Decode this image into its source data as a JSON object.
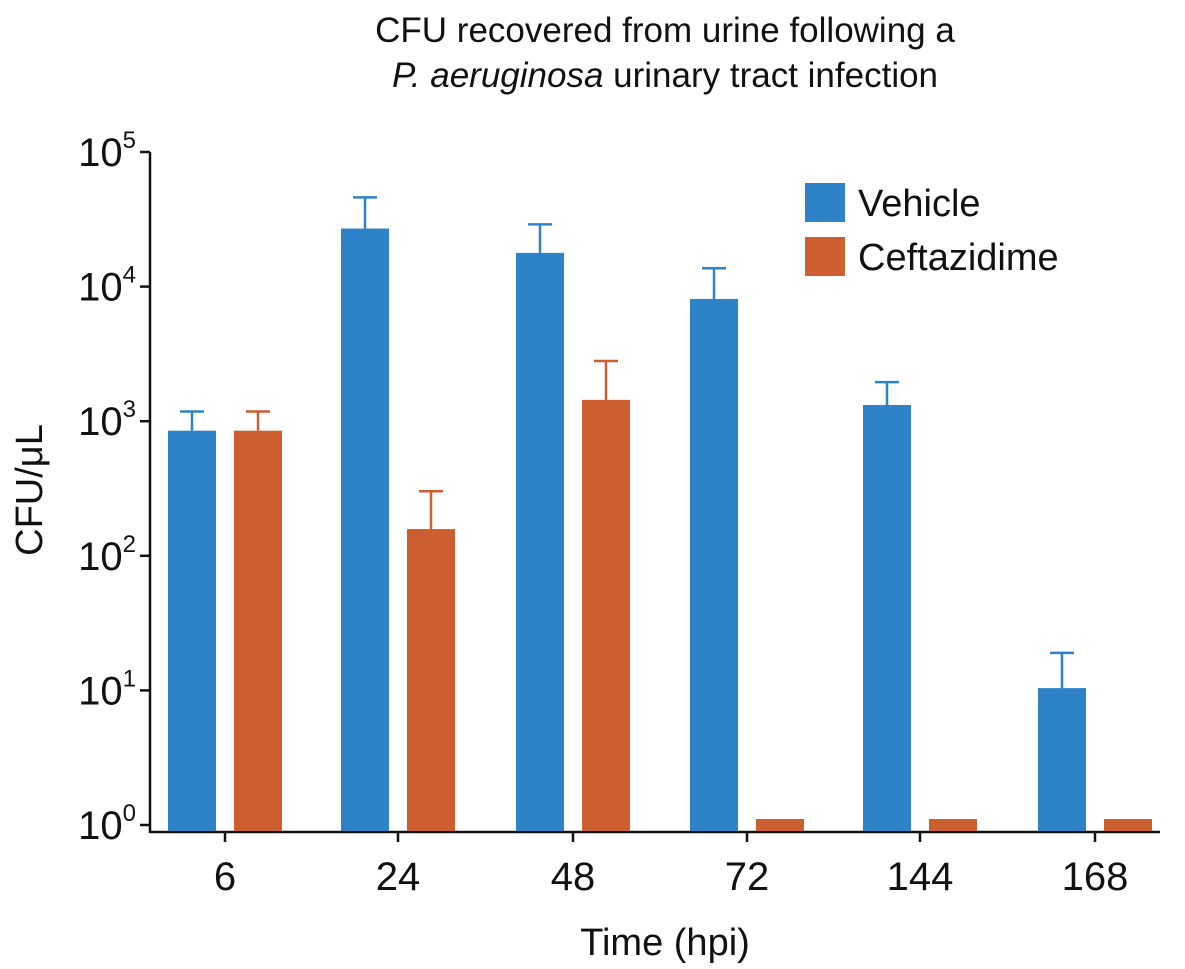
{
  "chart_data": {
    "type": "bar",
    "title_line1": "CFU recovered from urine following a",
    "title_line2_italic": "P. aeruginosa",
    "title_line2_rest": " urinary tract infection",
    "xlabel": "Time (hpi)",
    "ylabel": "CFU/μL",
    "yscale": "log",
    "ylim": [
      1,
      100000
    ],
    "yticks": [
      {
        "base": "10",
        "exp": "0"
      },
      {
        "base": "10",
        "exp": "1"
      },
      {
        "base": "10",
        "exp": "2"
      },
      {
        "base": "10",
        "exp": "3"
      },
      {
        "base": "10",
        "exp": "4"
      },
      {
        "base": "10",
        "exp": "5"
      }
    ],
    "categories": [
      "6",
      "24",
      "48",
      "72",
      "144",
      "168"
    ],
    "series": [
      {
        "name": "Vehicle",
        "color": "#2e82c8",
        "values": [
          850,
          27000,
          17800,
          8100,
          1320,
          10.4
        ],
        "error_upper": [
          1180,
          46000,
          29000,
          13700,
          1950,
          19
        ]
      },
      {
        "name": "Ceftazidime",
        "color": "#cc5e30",
        "values": [
          850,
          158,
          1440,
          1,
          1,
          1
        ],
        "error_upper": [
          1180,
          302,
          2800,
          null,
          null,
          null
        ]
      }
    ],
    "legend_position": "top-right",
    "grid": false
  }
}
